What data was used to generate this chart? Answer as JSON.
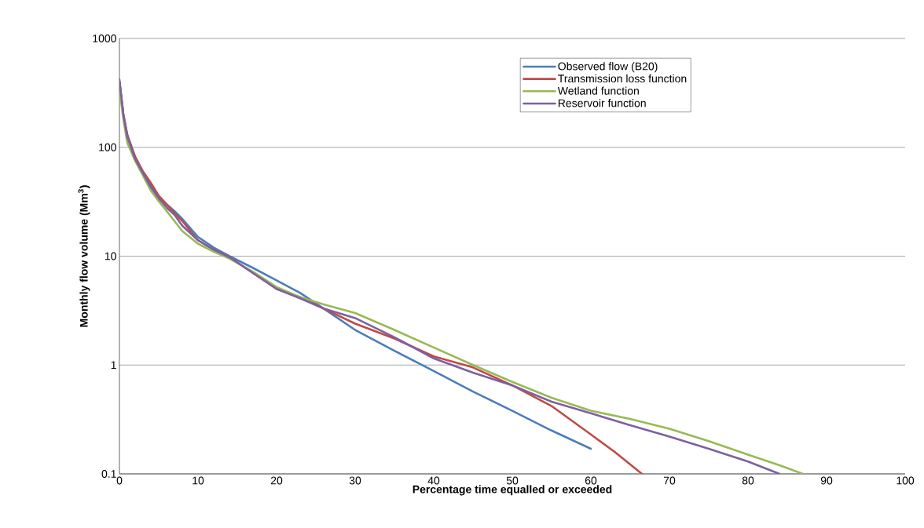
{
  "chart_data": {
    "type": "line",
    "xlabel": "Percentage time equalled or exceeded",
    "ylabel": "Monthly flow volume (Mm$^{3}$)",
    "log": "y",
    "grid": "y",
    "legend": "top right",
    "marker": "none",
    "line_style": "solid",
    "xlim": [
      0,
      100
    ],
    "xticks": [
      0,
      10,
      20,
      30,
      40,
      50,
      60,
      70,
      80,
      90,
      100
    ],
    "ylim": [
      0.1,
      1000
    ],
    "yticks": [
      0.1,
      1,
      10,
      100,
      1000
    ],
    "series": [
      {
        "name": "Observed flow (B20)",
        "color": "#4a7ebb",
        "x": [
          0,
          0.5,
          1,
          2,
          3,
          4,
          5,
          6,
          7,
          8,
          10,
          12,
          14,
          17,
          20,
          23,
          26,
          30,
          35,
          40,
          45,
          50,
          55,
          60
        ],
        "values": [
          400,
          200,
          130,
          80,
          58,
          45,
          35,
          30,
          26,
          22,
          15,
          12,
          10,
          7.8,
          6.0,
          4.6,
          3.3,
          2.1,
          1.35,
          0.88,
          0.57,
          0.38,
          0.25,
          0.17
        ]
      },
      {
        "name": "Transmission loss function",
        "color": "#be4b48",
        "x": [
          0,
          0.5,
          1,
          2,
          3,
          4,
          5,
          6,
          7,
          8,
          10,
          12,
          14,
          17,
          20,
          23,
          26,
          30,
          35,
          40,
          45,
          50,
          55,
          60,
          63,
          66.5
        ],
        "values": [
          400,
          200,
          130,
          82,
          60,
          47,
          36,
          30,
          25,
          21,
          14,
          11.5,
          9.8,
          7,
          5.0,
          4.2,
          3.3,
          2.4,
          1.75,
          1.2,
          0.95,
          0.65,
          0.42,
          0.23,
          0.16,
          0.1
        ]
      },
      {
        "name": "Wetland function",
        "color": "#98b954",
        "x": [
          0,
          0.5,
          1,
          2,
          3,
          4,
          5,
          6,
          7,
          8,
          10,
          12,
          14,
          17,
          20,
          23,
          26,
          30,
          35,
          40,
          45,
          50,
          55,
          60,
          65,
          70,
          75,
          80,
          84,
          87
        ],
        "values": [
          350,
          180,
          110,
          75,
          55,
          40,
          32,
          26,
          21,
          17,
          13,
          11,
          9.5,
          7.2,
          5.2,
          4.2,
          3.6,
          3.0,
          2.1,
          1.45,
          1.0,
          0.7,
          0.5,
          0.38,
          0.32,
          0.26,
          0.2,
          0.15,
          0.12,
          0.1
        ]
      },
      {
        "name": "Reservoir function",
        "color": "#7d60a0",
        "x": [
          0,
          0.5,
          1,
          2,
          3,
          4,
          5,
          6,
          7,
          8,
          10,
          12,
          14,
          17,
          20,
          23,
          26,
          30,
          35,
          40,
          45,
          50,
          55,
          60,
          65,
          70,
          75,
          80,
          84
        ],
        "values": [
          420,
          200,
          125,
          78,
          58,
          43,
          34,
          28,
          24,
          19,
          14,
          11.5,
          9.8,
          7,
          5,
          4.1,
          3.3,
          2.7,
          1.8,
          1.15,
          0.85,
          0.65,
          0.46,
          0.36,
          0.28,
          0.22,
          0.17,
          0.13,
          0.1
        ]
      }
    ]
  }
}
